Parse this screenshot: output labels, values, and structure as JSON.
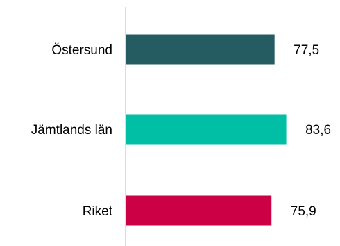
{
  "chart_data": {
    "type": "bar",
    "orientation": "horizontal",
    "categories": [
      "Östersund",
      "Jämtlands län",
      "Riket"
    ],
    "values": [
      77.5,
      83.6,
      75.9
    ],
    "value_labels": [
      "77,5",
      "83,6",
      "75,9"
    ],
    "colors": [
      "#255C62",
      "#00BFA5",
      "#CC0044"
    ],
    "xlim": [
      0,
      100
    ],
    "grid": false,
    "legend": "none",
    "axis_line_color": "#D0D0D0"
  }
}
